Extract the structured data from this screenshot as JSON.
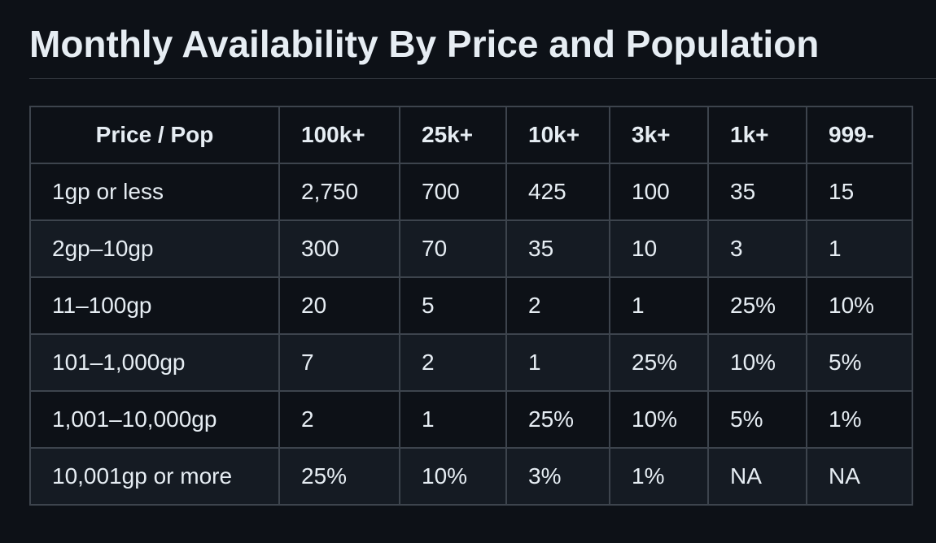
{
  "page": {
    "title": "Monthly Availability By Price and Population"
  },
  "table": {
    "headers": [
      "Price / Pop",
      "100k+",
      "25k+",
      "10k+",
      "3k+",
      "1k+",
      "999-"
    ],
    "rows": [
      [
        "1gp or less",
        "2,750",
        "700",
        "425",
        "100",
        "35",
        "15"
      ],
      [
        "2gp–10gp",
        "300",
        "70",
        "35",
        "10",
        "3",
        "1"
      ],
      [
        "11–100gp",
        "20",
        "5",
        "2",
        "1",
        "25%",
        "10%"
      ],
      [
        "101–1,000gp",
        "7",
        "2",
        "1",
        "25%",
        "10%",
        "5%"
      ],
      [
        "1,001–10,000gp",
        "2",
        "1",
        "25%",
        "10%",
        "5%",
        "1%"
      ],
      [
        "10,001gp or more",
        "25%",
        "10%",
        "3%",
        "1%",
        "NA",
        "NA"
      ]
    ]
  },
  "colors": {
    "background": "#0d1117",
    "row_alt": "#151b23",
    "border": "#3d444d",
    "text": "#e6edf3"
  }
}
